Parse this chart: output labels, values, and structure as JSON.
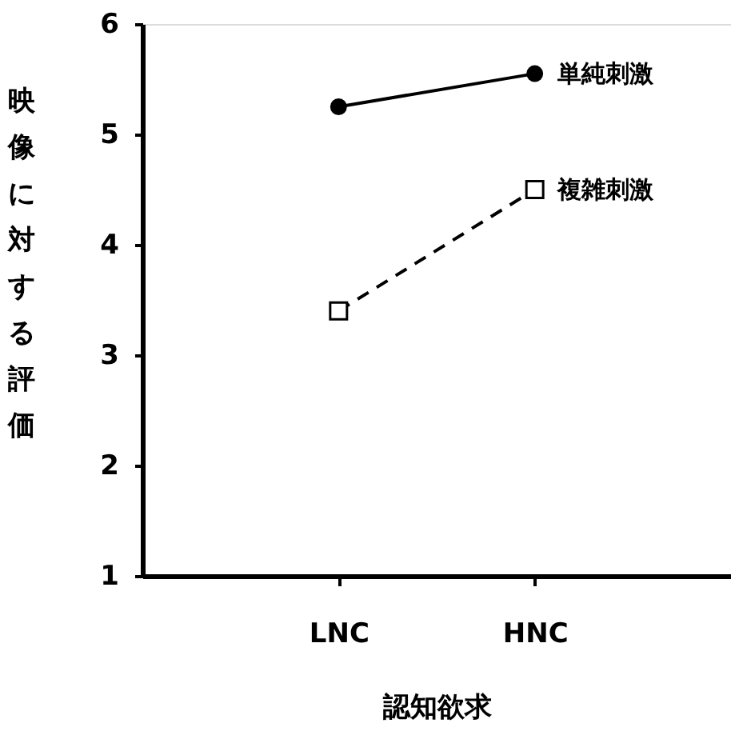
{
  "chart_data": {
    "type": "line",
    "xlabel": "認知欲求",
    "ylabel": "映像に対する評価",
    "categories": [
      "LNC",
      "HNC"
    ],
    "series": [
      {
        "name": "単純刺激",
        "color": "#000000",
        "values": [
          5.25,
          5.55
        ],
        "marker": "circle",
        "line_style": "solid"
      },
      {
        "name": "複雑刺激",
        "color": "#000000",
        "values": [
          3.4,
          4.5
        ],
        "marker": "square",
        "line_style": "dashed"
      }
    ],
    "ylim": [
      1,
      6
    ],
    "yticks": [
      1,
      2,
      3,
      4,
      5,
      6
    ],
    "grid": false
  }
}
